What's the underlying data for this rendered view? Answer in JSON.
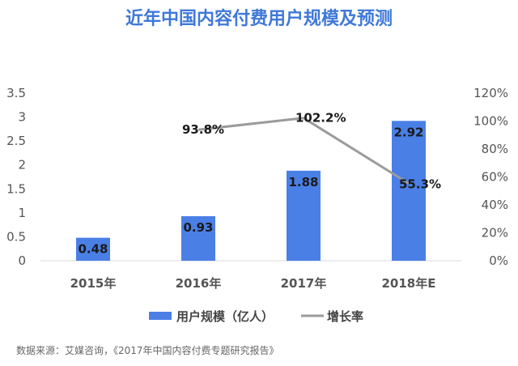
{
  "chart_data": {
    "type": "bar",
    "title": "近年中国内容付费用户规模及预测",
    "categories": [
      "2015年",
      "2016年",
      "2017年",
      "2018年E"
    ],
    "series": [
      {
        "name": "用户规模（亿人）",
        "type": "bar",
        "axis": "left",
        "color": "#4a7fe6",
        "values": [
          0.48,
          0.93,
          1.88,
          2.92
        ],
        "labels": [
          "0.48",
          "0.93",
          "1.88",
          "2.92"
        ]
      },
      {
        "name": "增长率",
        "type": "line",
        "axis": "right",
        "color": "#9b9b9b",
        "values": [
          null,
          93.8,
          102.2,
          55.3
        ],
        "labels": [
          "",
          "93.8%",
          "102.2%",
          "55.3%"
        ]
      }
    ],
    "y_left": {
      "min": 0,
      "max": 3.5,
      "ticks": [
        "0",
        "0.5",
        "1",
        "1.5",
        "2",
        "2.5",
        "3",
        "3.5"
      ]
    },
    "y_right": {
      "min": 0,
      "max": 120,
      "ticks": [
        "0%",
        "20%",
        "40%",
        "60%",
        "80%",
        "100%",
        "120%"
      ]
    },
    "grid": false,
    "legend_position": "bottom"
  },
  "source": "数据来源：艾媒咨询，《2017年中国内容付费专题研究报告》"
}
